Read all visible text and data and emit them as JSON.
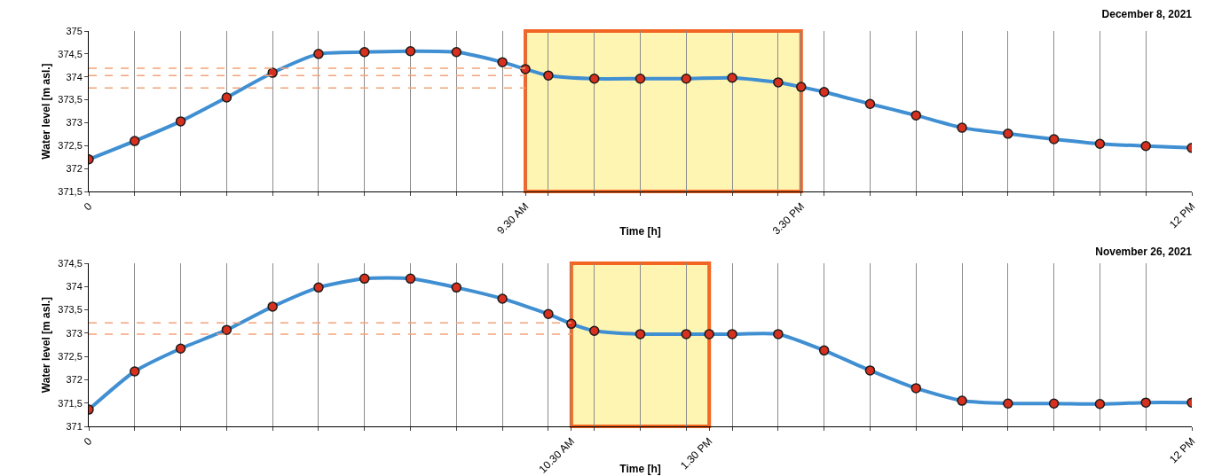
{
  "chart_data": [
    {
      "type": "line",
      "title": "December 8, 2021",
      "xlabel": "Time [h]",
      "ylabel": "Water level [m asl.]",
      "x": [
        "2021-12-08T00:00",
        "2021-12-08T01:00",
        "2021-12-08T02:00",
        "2021-12-08T03:00",
        "2021-12-08T04:00",
        "2021-12-08T05:00",
        "2021-12-08T06:00",
        "2021-12-08T07:00",
        "2021-12-08T08:00",
        "2021-12-08T09:00",
        "2021-12-08T09:30",
        "2021-12-08T10:00",
        "2021-12-08T11:00",
        "2021-12-08T12:00",
        "2021-12-08T13:00",
        "2021-12-08T14:00",
        "2021-12-08T15:00",
        "2021-12-08T15:30",
        "2021-12-08T16:00",
        "2021-12-08T17:00",
        "2021-12-08T18:00",
        "2021-12-08T19:00",
        "2021-12-08T20:00",
        "2021-12-08T21:00",
        "2021-12-08T22:00",
        "2021-12-08T23:00",
        "2021-12-09T00:00"
      ],
      "series": [
        {
          "color": "#3f8fd2",
          "values": [
            372.2,
            372.6,
            373.03,
            373.55,
            374.09,
            374.5,
            374.54,
            374.56,
            374.54,
            374.32,
            374.17,
            374.03,
            373.96,
            373.96,
            373.96,
            373.98,
            373.88,
            373.78,
            373.67,
            373.41,
            373.16,
            372.89,
            372.76,
            372.64,
            372.54,
            372.49,
            372.45
          ]
        }
      ],
      "marker": "circle",
      "line_style": "solid",
      "grid": "x",
      "xlim": [
        "2021-12-08T00:00",
        "2021-12-09T00:00"
      ],
      "xticks": [
        {
          "value": "2021-12-08T00:00",
          "label": "0"
        },
        {
          "value": "2021-12-08T01:00",
          "label": null
        },
        {
          "value": "2021-12-08T02:00",
          "label": null
        },
        {
          "value": "2021-12-08T03:00",
          "label": null
        },
        {
          "value": "2021-12-08T04:00",
          "label": null
        },
        {
          "value": "2021-12-08T05:00",
          "label": null
        },
        {
          "value": "2021-12-08T06:00",
          "label": null
        },
        {
          "value": "2021-12-08T07:00",
          "label": null
        },
        {
          "value": "2021-12-08T08:00",
          "label": null
        },
        {
          "value": "2021-12-08T09:00",
          "label": null
        },
        {
          "value": "2021-12-08T09:30",
          "label": "9.30 AM"
        },
        {
          "value": "2021-12-08T10:00",
          "label": null
        },
        {
          "value": "2021-12-08T11:00",
          "label": null
        },
        {
          "value": "2021-12-08T12:00",
          "label": null
        },
        {
          "value": "2021-12-08T13:00",
          "label": null
        },
        {
          "value": "2021-12-08T14:00",
          "label": null
        },
        {
          "value": "2021-12-08T15:00",
          "label": null
        },
        {
          "value": "2021-12-08T15:30",
          "label": "3.30 PM"
        },
        {
          "value": "2021-12-08T16:00",
          "label": null
        },
        {
          "value": "2021-12-08T17:00",
          "label": null
        },
        {
          "value": "2021-12-08T18:00",
          "label": null
        },
        {
          "value": "2021-12-08T19:00",
          "label": null
        },
        {
          "value": "2021-12-08T20:00",
          "label": null
        },
        {
          "value": "2021-12-08T21:00",
          "label": null
        },
        {
          "value": "2021-12-08T22:00",
          "label": null
        },
        {
          "value": "2021-12-08T23:00",
          "label": null
        },
        {
          "value": "2021-12-09T00:00",
          "label": "12 PM"
        }
      ],
      "ylim": [
        371.5,
        375
      ],
      "yticks": [
        {
          "value": 371.5,
          "label": "371,5"
        },
        372,
        {
          "value": 372.5,
          "label": "372,5"
        },
        373,
        {
          "value": 373.5,
          "label": "373,5"
        },
        374,
        {
          "value": 374.5,
          "label": "374,5"
        },
        375
      ],
      "bands": [
        {
          "axis": "x",
          "from": "2021-12-08T09:30",
          "to": "2021-12-08T15:30",
          "color": "#fff5b3"
        }
      ],
      "ref_lines": [
        {
          "axis": "y",
          "value": 374.19,
          "color": "#f4a27a",
          "line_style": "dashed"
        },
        {
          "axis": "y",
          "value": 374.03,
          "color": "#f4a27a",
          "line_style": "dashed"
        },
        {
          "axis": "y",
          "value": 373.76,
          "color": "#f4a27a",
          "line_style": "dashed"
        }
      ]
    },
    {
      "type": "line",
      "title": "November 26, 2021",
      "xlabel": "Time [h]",
      "ylabel": "Water level [m asl.]",
      "x": [
        "2021-11-26T00:00",
        "2021-11-26T01:00",
        "2021-11-26T02:00",
        "2021-11-26T03:00",
        "2021-11-26T04:00",
        "2021-11-26T05:00",
        "2021-11-26T06:00",
        "2021-11-26T07:00",
        "2021-11-26T08:00",
        "2021-11-26T09:00",
        "2021-11-26T10:00",
        "2021-11-26T10:30",
        "2021-11-26T11:00",
        "2021-11-26T12:00",
        "2021-11-26T13:00",
        "2021-11-26T13:30",
        "2021-11-26T14:00",
        "2021-11-26T15:00",
        "2021-11-26T16:00",
        "2021-11-26T17:00",
        "2021-11-26T18:00",
        "2021-11-26T19:00",
        "2021-11-26T20:00",
        "2021-11-26T21:00",
        "2021-11-26T22:00",
        "2021-11-26T23:00",
        "2021-11-27T00:00"
      ],
      "series": [
        {
          "color": "#3f8fd2",
          "values": [
            371.36,
            372.18,
            372.67,
            373.07,
            373.57,
            373.98,
            374.17,
            374.17,
            373.98,
            373.74,
            373.41,
            373.2,
            373.05,
            372.98,
            372.98,
            372.98,
            372.98,
            372.98,
            372.63,
            372.2,
            371.82,
            371.55,
            371.49,
            371.49,
            371.48,
            371.51,
            371.51
          ]
        }
      ],
      "marker": "circle",
      "line_style": "solid",
      "grid": "x",
      "xlim": [
        "2021-11-26T00:00",
        "2021-11-27T00:00"
      ],
      "xticks": [
        {
          "value": "2021-11-26T00:00",
          "label": "0"
        },
        {
          "value": "2021-11-26T01:00",
          "label": null
        },
        {
          "value": "2021-11-26T02:00",
          "label": null
        },
        {
          "value": "2021-11-26T03:00",
          "label": null
        },
        {
          "value": "2021-11-26T04:00",
          "label": null
        },
        {
          "value": "2021-11-26T05:00",
          "label": null
        },
        {
          "value": "2021-11-26T06:00",
          "label": null
        },
        {
          "value": "2021-11-26T07:00",
          "label": null
        },
        {
          "value": "2021-11-26T08:00",
          "label": null
        },
        {
          "value": "2021-11-26T09:00",
          "label": null
        },
        {
          "value": "2021-11-26T10:00",
          "label": null
        },
        {
          "value": "2021-11-26T10:30",
          "label": "10.30 AM"
        },
        {
          "value": "2021-11-26T11:00",
          "label": null
        },
        {
          "value": "2021-11-26T12:00",
          "label": null
        },
        {
          "value": "2021-11-26T13:00",
          "label": null
        },
        {
          "value": "2021-11-26T13:30",
          "label": "1.30 PM"
        },
        {
          "value": "2021-11-26T14:00",
          "label": null
        },
        {
          "value": "2021-11-26T15:00",
          "label": null
        },
        {
          "value": "2021-11-26T16:00",
          "label": null
        },
        {
          "value": "2021-11-26T17:00",
          "label": null
        },
        {
          "value": "2021-11-26T18:00",
          "label": null
        },
        {
          "value": "2021-11-26T19:00",
          "label": null
        },
        {
          "value": "2021-11-26T20:00",
          "label": null
        },
        {
          "value": "2021-11-26T21:00",
          "label": null
        },
        {
          "value": "2021-11-26T22:00",
          "label": null
        },
        {
          "value": "2021-11-26T23:00",
          "label": null
        },
        {
          "value": "2021-11-27T00:00",
          "label": "12 PM"
        }
      ],
      "ylim": [
        371,
        374.5
      ],
      "yticks": [
        371,
        {
          "value": 371.5,
          "label": "371,5"
        },
        372,
        {
          "value": 372.5,
          "label": "372,5"
        },
        373,
        {
          "value": 373.5,
          "label": "373,5"
        },
        374,
        {
          "value": 374.5,
          "label": "374,5"
        }
      ],
      "bands": [
        {
          "axis": "x",
          "from": "2021-11-26T10:30",
          "to": "2021-11-26T13:30",
          "color": "#fff5b3"
        }
      ],
      "ref_lines": [
        {
          "axis": "y",
          "value": 373.22,
          "color": "#f4a27a",
          "line_style": "dashed"
        },
        {
          "axis": "y",
          "value": 372.98,
          "color": "#f4a27a",
          "line_style": "dashed"
        }
      ]
    }
  ]
}
